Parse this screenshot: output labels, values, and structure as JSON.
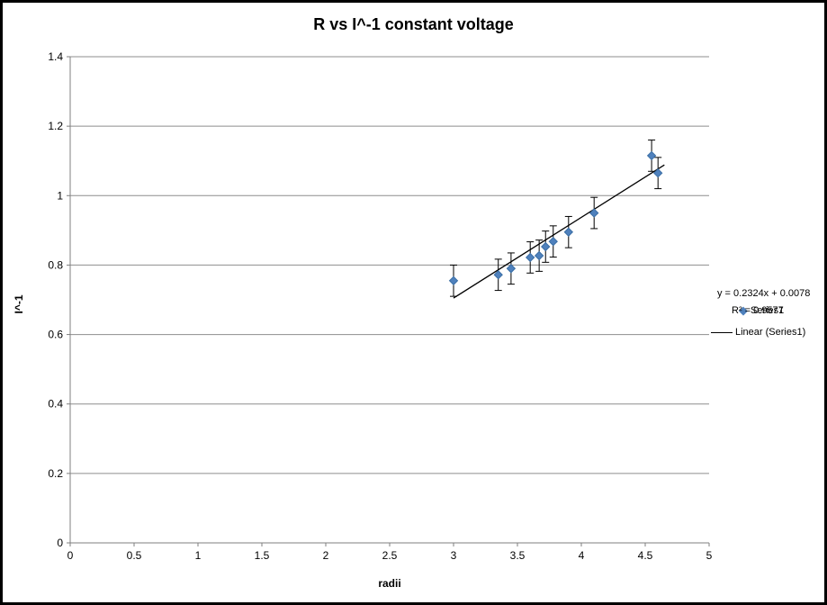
{
  "chart_data": {
    "type": "scatter",
    "title": "R vs I^-1 constant voltage",
    "xlabel": "radii",
    "ylabel": "I^-1",
    "xlim": [
      0,
      5
    ],
    "ylim": [
      0,
      1.4
    ],
    "xticks": [
      0,
      0.5,
      1,
      1.5,
      2,
      2.5,
      3,
      3.5,
      4,
      4.5,
      5
    ],
    "yticks": [
      0,
      0.2,
      0.4,
      0.6,
      0.8,
      1,
      1.2,
      1.4
    ],
    "grid": "horizontal",
    "legend_position": "right",
    "colors": {
      "marker": "#4f81bd",
      "marker_edge": "#3a6ea5",
      "trendline": "#000000",
      "grid": "#8e8e8e",
      "axis": "#7f7f7f",
      "error_bar": "#000000"
    },
    "series": [
      {
        "name": "Series1",
        "marker": "diamond",
        "yerr": 0.045,
        "points": [
          [
            3.0,
            0.755
          ],
          [
            3.35,
            0.772
          ],
          [
            3.45,
            0.79
          ],
          [
            3.6,
            0.822
          ],
          [
            3.67,
            0.827
          ],
          [
            3.72,
            0.853
          ],
          [
            3.78,
            0.868
          ],
          [
            3.9,
            0.895
          ],
          [
            4.1,
            0.95
          ],
          [
            4.55,
            1.115
          ],
          [
            4.6,
            1.065
          ]
        ]
      }
    ],
    "trendline": {
      "label": "Linear (Series1)",
      "slope": 0.2324,
      "intercept": 0.0078,
      "x_start": 3.0,
      "x_end": 4.65,
      "equation": "y = 0.2324x + 0.0078",
      "r_squared": "R² = 0.9577"
    }
  }
}
